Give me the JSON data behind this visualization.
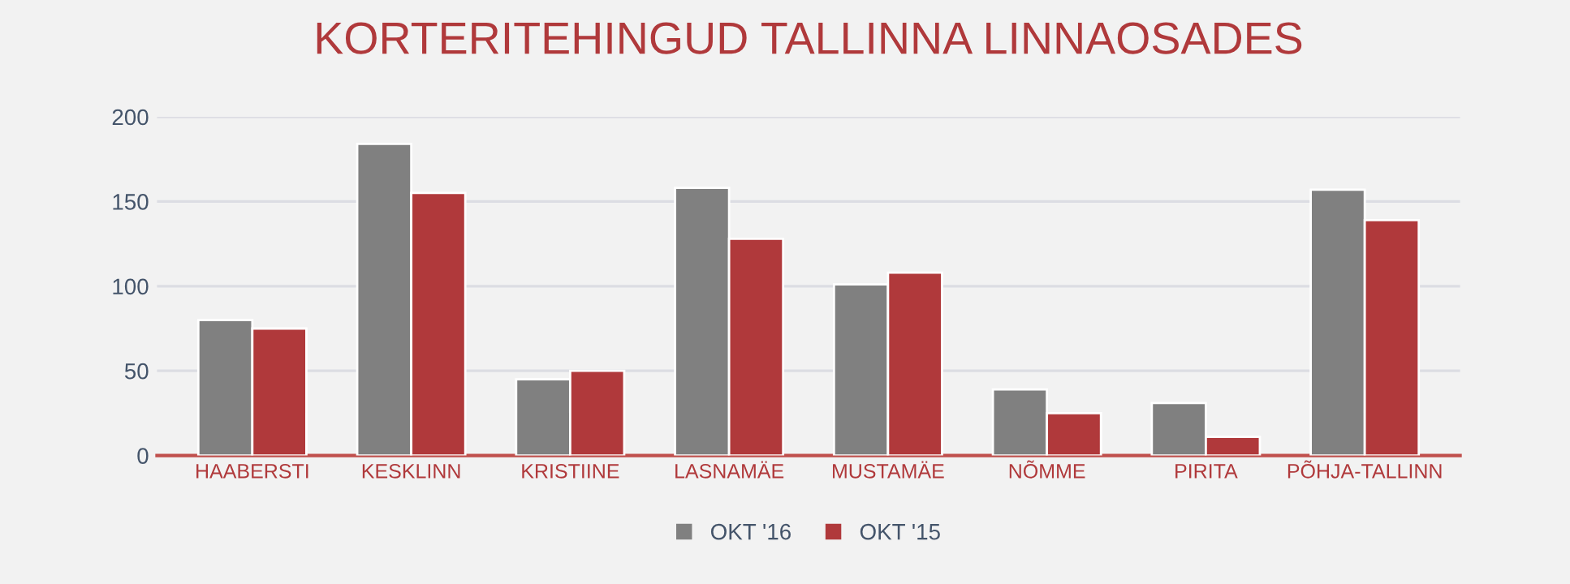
{
  "chart_data": {
    "type": "bar",
    "title": "KORTERITEHINGUD TALLINNA LINNAOSADES",
    "categories": [
      "HAABERSTI",
      "KESKLINN",
      "KRISTIINE",
      "LASNAMÄE",
      "MUSTAMÄE",
      "NÕMME",
      "PIRITA",
      "PÕHJA-TALLINN"
    ],
    "series": [
      {
        "name": "OKT '16",
        "color": "#808080",
        "values": [
          80,
          184,
          45,
          158,
          101,
          39,
          31,
          157
        ]
      },
      {
        "name": "OKT '15",
        "color": "#b0393b",
        "values": [
          75,
          155,
          50,
          128,
          108,
          25,
          11,
          139
        ]
      }
    ],
    "ylim": [
      0,
      200
    ],
    "yticks": [
      0,
      50,
      100,
      150,
      200
    ],
    "grid": "y",
    "legend": "bottom"
  }
}
